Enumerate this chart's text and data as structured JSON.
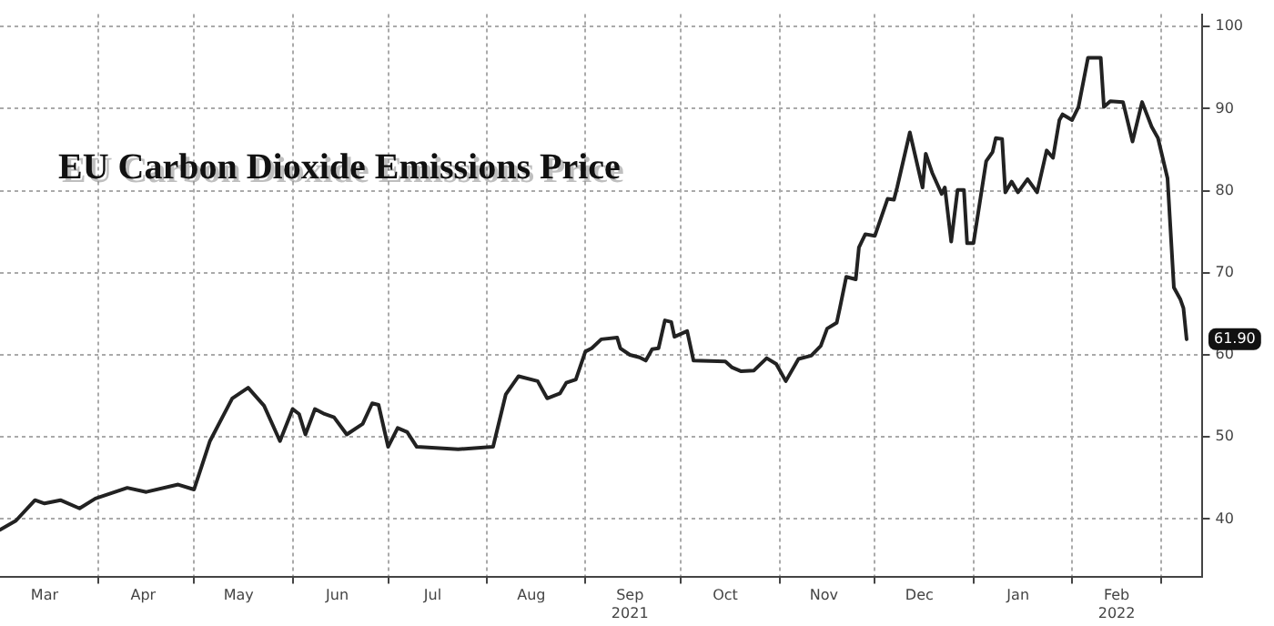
{
  "chart_data": {
    "type": "line",
    "title": "EU Carbon Dioxide Emissions Price",
    "x": [
      "2021-03-01",
      "2021-03-06",
      "2021-03-12",
      "2021-03-15",
      "2021-03-20",
      "2021-03-26",
      "2021-03-31",
      "2021-04-10",
      "2021-04-16",
      "2021-04-26",
      "2021-05-01",
      "2021-05-06",
      "2021-05-13",
      "2021-05-18",
      "2021-05-23",
      "2021-05-28",
      "2021-06-01",
      "2021-06-03",
      "2021-06-05",
      "2021-06-08",
      "2021-06-11",
      "2021-06-14",
      "2021-06-18",
      "2021-06-23",
      "2021-06-26",
      "2021-06-28",
      "2021-07-01",
      "2021-07-04",
      "2021-07-07",
      "2021-07-10",
      "2021-07-23",
      "2021-08-03",
      "2021-08-07",
      "2021-08-11",
      "2021-08-17",
      "2021-08-20",
      "2021-08-24",
      "2021-08-26",
      "2021-08-29",
      "2021-09-01",
      "2021-09-03",
      "2021-09-06",
      "2021-09-11",
      "2021-09-12",
      "2021-09-15",
      "2021-09-18",
      "2021-09-20",
      "2021-09-22",
      "2021-09-24",
      "2021-09-26",
      "2021-09-28",
      "2021-09-29",
      "2021-10-03",
      "2021-10-05",
      "2021-10-15",
      "2021-10-17",
      "2021-10-20",
      "2021-10-24",
      "2021-10-28",
      "2021-10-31",
      "2021-11-03",
      "2021-11-07",
      "2021-11-11",
      "2021-11-14",
      "2021-11-16",
      "2021-11-19",
      "2021-11-20",
      "2021-11-22",
      "2021-11-25",
      "2021-11-26",
      "2021-11-28",
      "2021-12-01",
      "2021-12-05",
      "2021-12-07",
      "2021-12-08",
      "2021-12-12",
      "2021-12-16",
      "2021-12-17",
      "2021-12-19",
      "2021-12-22",
      "2021-12-23",
      "2021-12-25",
      "2021-12-27",
      "2021-12-29",
      "2021-12-30",
      "2022-01-01",
      "2022-01-05",
      "2022-01-07",
      "2022-01-08",
      "2022-01-10",
      "2022-01-11",
      "2022-01-13",
      "2022-01-15",
      "2022-01-18",
      "2022-01-21",
      "2022-01-24",
      "2022-01-26",
      "2022-01-28",
      "2022-01-29",
      "2022-02-01",
      "2022-02-03",
      "2022-02-06",
      "2022-02-10",
      "2022-02-11",
      "2022-02-13",
      "2022-02-17",
      "2022-02-20",
      "2022-02-23",
      "2022-02-26",
      "2022-02-28",
      "2022-03-03",
      "2022-03-05",
      "2022-03-07",
      "2022-03-08",
      "2022-03-09"
    ],
    "series": [
      {
        "color": "#222222",
        "values": [
          38.7,
          39.8,
          42.3,
          41.9,
          42.3,
          41.3,
          42.5,
          43.8,
          43.3,
          44.2,
          43.6,
          49.5,
          54.7,
          56.0,
          53.8,
          49.5,
          53.4,
          52.8,
          50.3,
          53.4,
          52.8,
          52.4,
          50.3,
          51.6,
          54.1,
          53.9,
          48.8,
          51.1,
          50.6,
          48.8,
          48.5,
          48.8,
          55.2,
          57.4,
          56.8,
          54.7,
          55.3,
          56.6,
          57.0,
          60.4,
          60.8,
          61.9,
          62.1,
          60.8,
          60.0,
          59.7,
          59.3,
          60.7,
          60.8,
          64.2,
          64.0,
          62.2,
          62.9,
          59.3,
          59.2,
          58.5,
          58.0,
          58.1,
          59.6,
          58.9,
          56.8,
          59.5,
          59.9,
          61.1,
          63.2,
          63.9,
          65.7,
          69.5,
          69.2,
          73.1,
          74.7,
          74.5,
          79.0,
          78.9,
          80.4,
          87.1,
          80.4,
          84.5,
          82.2,
          79.6,
          80.4,
          73.8,
          80.1,
          80.1,
          73.6,
          73.6,
          83.6,
          84.7,
          86.4,
          86.3,
          79.8,
          81.1,
          79.8,
          81.4,
          79.8,
          84.9,
          84.0,
          88.6,
          89.3,
          88.6,
          90.2,
          96.2,
          96.2,
          90.2,
          90.9,
          90.8,
          86.0,
          90.8,
          87.8,
          86.4,
          81.5,
          68.2,
          66.8,
          65.7,
          61.9
        ]
      }
    ],
    "xlim": [
      "2021-03-01",
      "2022-03-14"
    ],
    "xticks": [
      {
        "value": "2021-03-15",
        "label": "Mar"
      },
      {
        "value": "2021-04-01",
        "label": null
      },
      {
        "value": "2021-04-15",
        "label": "Apr"
      },
      {
        "value": "2021-05-01",
        "label": null
      },
      {
        "value": "2021-05-15",
        "label": "May"
      },
      {
        "value": "2021-06-01",
        "label": null
      },
      {
        "value": "2021-06-15",
        "label": "Jun"
      },
      {
        "value": "2021-07-01",
        "label": null
      },
      {
        "value": "2021-07-15",
        "label": "Jul"
      },
      {
        "value": "2021-08-01",
        "label": null
      },
      {
        "value": "2021-08-15",
        "label": "Aug"
      },
      {
        "value": "2021-09-01",
        "label": null
      },
      {
        "value": "2021-09-15",
        "label": "Sep\n2021"
      },
      {
        "value": "2021-10-01",
        "label": null
      },
      {
        "value": "2021-10-15",
        "label": "Oct"
      },
      {
        "value": "2021-11-01",
        "label": null
      },
      {
        "value": "2021-11-15",
        "label": "Nov"
      },
      {
        "value": "2021-12-01",
        "label": null
      },
      {
        "value": "2021-12-15",
        "label": "Dec"
      },
      {
        "value": "2022-01-01",
        "label": null
      },
      {
        "value": "2022-01-15",
        "label": "Jan"
      },
      {
        "value": "2022-02-01",
        "label": null
      },
      {
        "value": "2022-02-15",
        "label": "Feb\n2022"
      },
      {
        "value": "2022-03-01",
        "label": null
      }
    ],
    "ylim": [
      33,
      101.5
    ],
    "yticks": [
      40,
      50,
      60,
      70,
      80,
      90,
      100
    ],
    "grid": true,
    "legend": false,
    "marker": "none",
    "line_style": "solid",
    "annotations": [
      {
        "text": "61.90",
        "x": "2022-03-09",
        "y": 61.9
      }
    ]
  }
}
